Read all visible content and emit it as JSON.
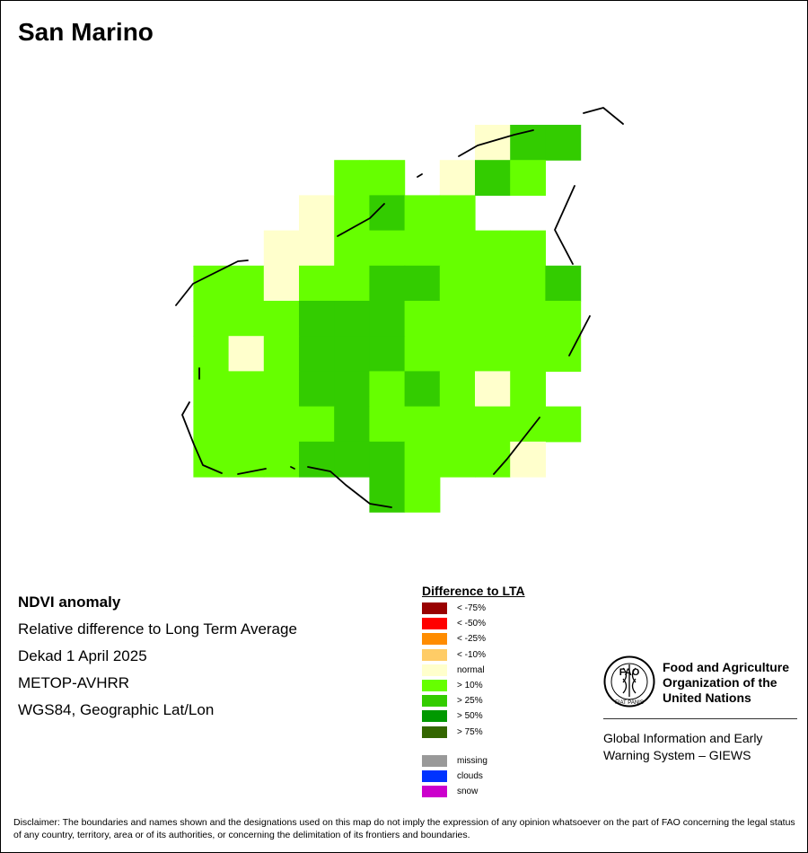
{
  "title": "San Marino",
  "info": {
    "heading": "NDVI anomaly",
    "line1": "Relative difference to Long Term Average",
    "line2": "Dekad 1 April 2025",
    "line3": "METOP-AVHRR",
    "line4": "WGS84, Geographic Lat/Lon"
  },
  "legend": {
    "title": "Difference to LTA",
    "classes": [
      {
        "key": "lt75",
        "label": "< -75%",
        "color": "#990000"
      },
      {
        "key": "lt50",
        "label": "< -50%",
        "color": "#ff0000"
      },
      {
        "key": "lt25",
        "label": "< -25%",
        "color": "#ff8c00"
      },
      {
        "key": "lt10",
        "label": "< -10%",
        "color": "#ffcc66"
      },
      {
        "key": "normal",
        "label": "normal",
        "color": "#ffffcc"
      },
      {
        "key": "gt10",
        "label": "> 10%",
        "color": "#66ff00"
      },
      {
        "key": "gt25",
        "label": "> 25%",
        "color": "#33cc00"
      },
      {
        "key": "gt50",
        "label": "> 50%",
        "color": "#009900"
      },
      {
        "key": "gt75",
        "label": "> 75%",
        "color": "#336600"
      }
    ],
    "extra": [
      {
        "key": "missing",
        "label": "missing",
        "color": "#999999"
      },
      {
        "key": "clouds",
        "label": "clouds",
        "color": "#0033ff"
      },
      {
        "key": "snow",
        "label": "snow",
        "color": "#cc00cc"
      }
    ]
  },
  "raster": {
    "rows": [
      "__________N22__",
      "______11_NB1___",
      "_____N1B11_____",
      "____NN111111___",
      "__11N11BB111B__",
      "__111BBB11111__",
      "__1N1BBB11111__",
      "__111BB1B1N1___",
      "__1111B111111__",
      "__111BBB111N___",
      "_______B1______"
    ]
  },
  "fao": {
    "org_line1": "Food and Agriculture",
    "org_line2": "Organization of the",
    "org_line3": "United Nations",
    "logo_text": "FAO",
    "motto": "FIAT PANIS",
    "giews_line1": "Global Information and Early",
    "giews_line2": "Warning System – GIEWS"
  },
  "disclaimer": "Disclaimer: The boundaries and names shown and the designations used on this map do not imply the expression of any opinion whatsoever on the part of FAO concerning the legal status of any country, territory, area or of its authorities, or concerning the delimitation of its frontiers and boundaries."
}
